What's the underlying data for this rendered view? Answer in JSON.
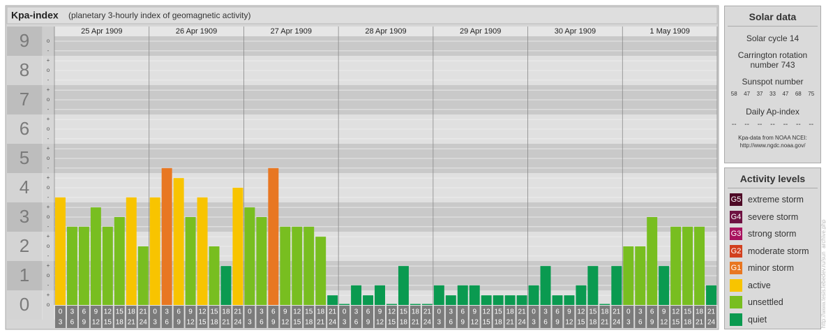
{
  "chart_data": {
    "type": "bar",
    "title": "Kpa-index",
    "subtitle": "(planetary 3-hourly index of geomagnetic activity)",
    "ylim": [
      -0.5,
      9.5
    ],
    "yticks": [
      0,
      1,
      2,
      3,
      4,
      5,
      6,
      7,
      8,
      9
    ],
    "yminorticks": [
      {
        "value": 9,
        "label": "o"
      },
      {
        "value": 8.67,
        "label": "-"
      },
      {
        "value": 8.33,
        "label": "+"
      },
      {
        "value": 8,
        "label": "o"
      },
      {
        "value": 7.67,
        "label": "-"
      },
      {
        "value": 7.33,
        "label": "+"
      },
      {
        "value": 7,
        "label": "o"
      },
      {
        "value": 6.67,
        "label": "-"
      },
      {
        "value": 6.33,
        "label": "+"
      },
      {
        "value": 6,
        "label": "o"
      },
      {
        "value": 5.67,
        "label": "-"
      },
      {
        "value": 5.33,
        "label": "+"
      },
      {
        "value": 5,
        "label": "o"
      },
      {
        "value": 4.67,
        "label": "-"
      },
      {
        "value": 4.33,
        "label": "+"
      },
      {
        "value": 4,
        "label": "o"
      },
      {
        "value": 3.67,
        "label": "-"
      },
      {
        "value": 3.33,
        "label": "+"
      },
      {
        "value": 3,
        "label": "o"
      },
      {
        "value": 2.67,
        "label": "-"
      },
      {
        "value": 2.33,
        "label": "+"
      },
      {
        "value": 2,
        "label": "o"
      },
      {
        "value": 1.67,
        "label": "-"
      },
      {
        "value": 1.33,
        "label": "+"
      },
      {
        "value": 1,
        "label": "o"
      },
      {
        "value": 0.67,
        "label": "-"
      },
      {
        "value": 0.33,
        "label": "+"
      },
      {
        "value": 0,
        "label": "o"
      }
    ],
    "intervals": [
      [
        "0",
        "3"
      ],
      [
        "3",
        "6"
      ],
      [
        "6",
        "9"
      ],
      [
        "9",
        "12"
      ],
      [
        "12",
        "15"
      ],
      [
        "15",
        "18"
      ],
      [
        "18",
        "21"
      ],
      [
        "21",
        "24"
      ]
    ],
    "days": [
      {
        "date": "25 Apr 1909",
        "values": [
          3.67,
          2.67,
          2.67,
          3.33,
          2.67,
          3,
          3.67,
          2
        ],
        "colors": [
          "#f8c400",
          "#78be20",
          "#78be20",
          "#78be20",
          "#78be20",
          "#78be20",
          "#f8c400",
          "#78be20"
        ]
      },
      {
        "date": "26 Apr 1909",
        "values": [
          3.67,
          4.67,
          4.33,
          3,
          3.67,
          2,
          1.33,
          4
        ],
        "colors": [
          "#f8c400",
          "#e87722",
          "#f8c400",
          "#78be20",
          "#f8c400",
          "#78be20",
          "#0a9a50",
          "#f8c400"
        ]
      },
      {
        "date": "27 Apr 1909",
        "values": [
          3.33,
          3,
          4.67,
          2.67,
          2.67,
          2.67,
          2.33,
          0.33
        ],
        "colors": [
          "#78be20",
          "#78be20",
          "#e87722",
          "#78be20",
          "#78be20",
          "#78be20",
          "#78be20",
          "#0a9a50"
        ]
      },
      {
        "date": "28 Apr 1909",
        "values": [
          0,
          0.67,
          0.33,
          0.67,
          0,
          1.33,
          0,
          0
        ],
        "colors": [
          "#0a9a50",
          "#0a9a50",
          "#0a9a50",
          "#0a9a50",
          "#0a9a50",
          "#0a9a50",
          "#0a9a50",
          "#0a9a50"
        ]
      },
      {
        "date": "29 Apr 1909",
        "values": [
          0.67,
          0.33,
          0.67,
          0.67,
          0.33,
          0.33,
          0.33,
          0.33
        ],
        "colors": [
          "#0a9a50",
          "#0a9a50",
          "#0a9a50",
          "#0a9a50",
          "#0a9a50",
          "#0a9a50",
          "#0a9a50",
          "#0a9a50"
        ]
      },
      {
        "date": "30 Apr 1909",
        "values": [
          0.67,
          1.33,
          0.33,
          0.33,
          0.67,
          1.33,
          0,
          1.33
        ],
        "colors": [
          "#0a9a50",
          "#0a9a50",
          "#0a9a50",
          "#0a9a50",
          "#0a9a50",
          "#0a9a50",
          "#0a9a50",
          "#0a9a50"
        ]
      },
      {
        "date": "1 May 1909",
        "values": [
          2,
          2,
          3,
          1.33,
          2.67,
          2.67,
          2.67,
          0.67
        ],
        "colors": [
          "#78be20",
          "#78be20",
          "#78be20",
          "#0a9a50",
          "#78be20",
          "#78be20",
          "#78be20",
          "#0a9a50"
        ]
      }
    ],
    "solar": {
      "title": "Solar data",
      "cycle": "Solar cycle 14",
      "rotation": "Carrington rotation number 743",
      "sunspot_title": "Sunspot number",
      "sunspot": [
        58,
        47,
        37,
        33,
        47,
        68,
        75
      ],
      "ap_title": "Daily Ap-index",
      "ap": [
        "--",
        "--",
        "--",
        "--",
        "--",
        "--",
        "--"
      ],
      "source": "Kpa-data from NOAA NCEI:",
      "source_url": "http://www.ngdc.noaa.gov/"
    },
    "levels_title": "Activity levels",
    "levels": [
      {
        "badge": "G5",
        "name": "extreme storm",
        "color": "#4e0a26"
      },
      {
        "badge": "G4",
        "name": "severe storm",
        "color": "#6e1242"
      },
      {
        "badge": "G3",
        "name": "strong storm",
        "color": "#a8125e"
      },
      {
        "badge": "G2",
        "name": "moderate storm",
        "color": "#d2401e"
      },
      {
        "badge": "G1",
        "name": "minor storm",
        "color": "#e87722"
      },
      {
        "name": "active",
        "color": "#f8c400"
      },
      {
        "name": "unsettled",
        "color": "#78be20"
      },
      {
        "name": "quiet",
        "color": "#0a9a50"
      }
    ],
    "watermark": "http://www.tesis.lebedev.ru/sun_archive.php"
  }
}
